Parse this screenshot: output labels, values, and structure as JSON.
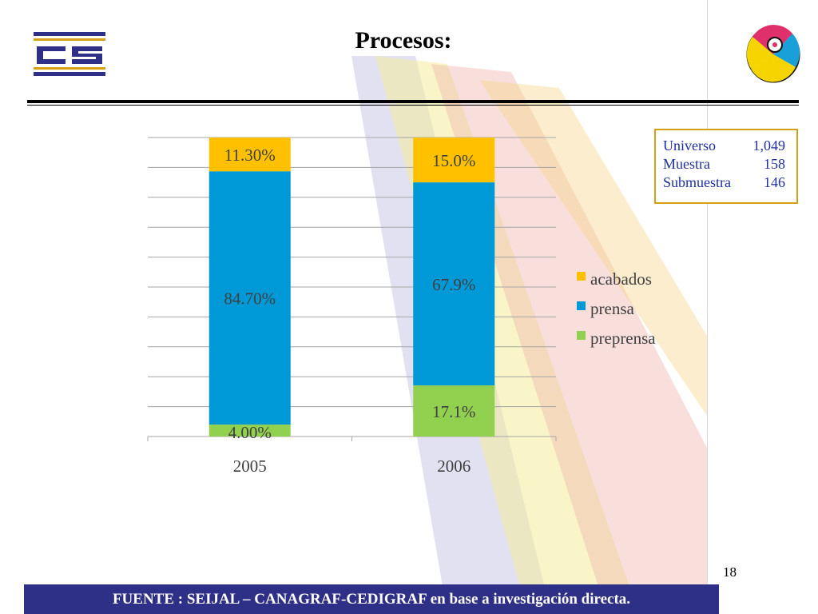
{
  "slide": {
    "title": "Procesos:",
    "page_number": "18",
    "footer": "FUENTE :  SEIJAL – CANAGRAF-CEDIGRAF en base a investigación directa."
  },
  "info_box": {
    "rows": [
      {
        "label": "Universo",
        "value": "1,049"
      },
      {
        "label": "Muestra",
        "value": "158"
      },
      {
        "label": "Submuestra",
        "value": "146"
      }
    ]
  },
  "colors": {
    "acabados": "#FFC000",
    "prensa": "#0099D8",
    "preprensa": "#92D050",
    "footer_bg": "#2E2F86",
    "info_text": "#1F2F9E",
    "info_border": "#D4A017"
  },
  "chart_data": {
    "type": "bar",
    "stacked": true,
    "percent_stacked": true,
    "categories": [
      "2005",
      "2006"
    ],
    "series": [
      {
        "name": "preprensa",
        "values": [
          4.0,
          17.1
        ],
        "labels": [
          "4.00%",
          "17.1%"
        ]
      },
      {
        "name": "prensa",
        "values": [
          84.7,
          67.9
        ],
        "labels": [
          "84.70%",
          "67.9%"
        ]
      },
      {
        "name": "acabados",
        "values": [
          11.3,
          15.0
        ],
        "labels": [
          "11.30%",
          "15.0%"
        ]
      }
    ],
    "legend": [
      "acabados",
      "prensa",
      "preprensa"
    ],
    "legend_position": "right",
    "ylim": [
      0,
      100
    ],
    "grid": true,
    "title": "",
    "xlabel": "",
    "ylabel": ""
  }
}
